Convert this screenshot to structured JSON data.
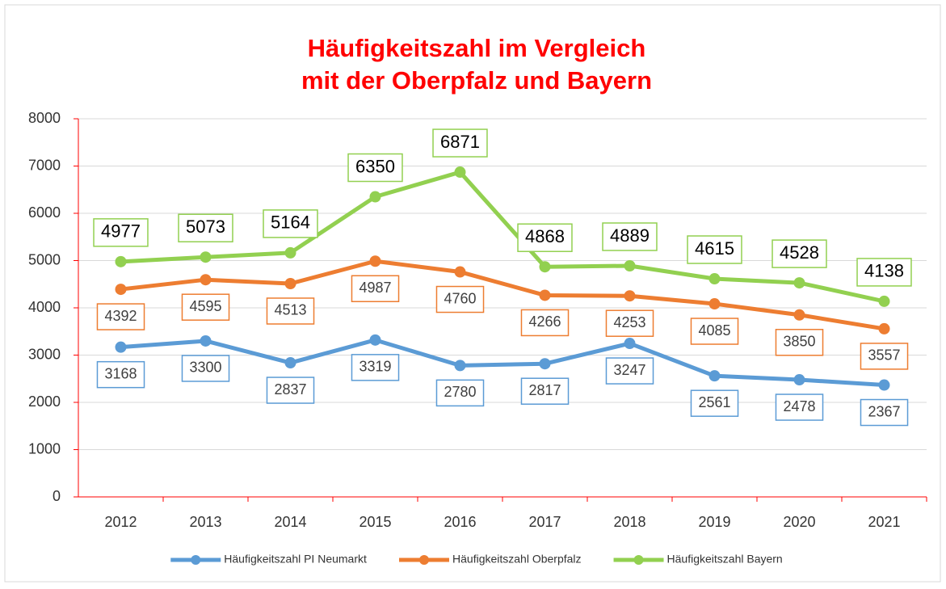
{
  "chart_data": {
    "type": "line",
    "title": [
      "Häufigkeitszahl im Vergleich",
      "mit der Oberpfalz und Bayern"
    ],
    "categories": [
      "2012",
      "2013",
      "2014",
      "2015",
      "2016",
      "2017",
      "2018",
      "2019",
      "2020",
      "2021"
    ],
    "series": [
      {
        "name": "Häufigkeitszahl PI Neumarkt",
        "color": "#5b9bd5",
        "values": [
          3168,
          3300,
          2837,
          3319,
          2780,
          2817,
          3247,
          2561,
          2478,
          2367
        ]
      },
      {
        "name": "Häufigkeitszahl Oberpfalz",
        "color": "#ed7d31",
        "values": [
          4392,
          4595,
          4513,
          4987,
          4760,
          4266,
          4253,
          4085,
          3850,
          3557
        ]
      },
      {
        "name": "Häufigkeitszahl Bayern",
        "color": "#92d050",
        "values": [
          4977,
          5073,
          5164,
          6350,
          6871,
          4868,
          4889,
          4615,
          4528,
          4138
        ]
      }
    ],
    "ylim": [
      0,
      8000
    ],
    "yticks": [
      0,
      1000,
      2000,
      3000,
      4000,
      5000,
      6000,
      7000,
      8000
    ],
    "grid": true,
    "legend": "bottom"
  }
}
